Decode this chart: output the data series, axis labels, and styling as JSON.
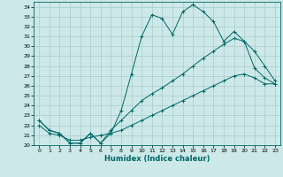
{
  "title": "",
  "xlabel": "Humidex (Indice chaleur)",
  "bg_color": "#cce8e8",
  "grid_color": "#aacccc",
  "line_color": "#006666",
  "xlim": [
    -0.5,
    23.5
  ],
  "ylim": [
    20,
    34.5
  ],
  "xticks": [
    0,
    1,
    2,
    3,
    4,
    5,
    6,
    7,
    8,
    9,
    10,
    11,
    12,
    13,
    14,
    15,
    16,
    17,
    18,
    19,
    20,
    21,
    22,
    23
  ],
  "yticks": [
    20,
    21,
    22,
    23,
    24,
    25,
    26,
    27,
    28,
    29,
    30,
    31,
    32,
    33,
    34
  ],
  "line1_x": [
    0,
    1,
    2,
    3,
    4,
    5,
    6,
    7,
    8,
    9,
    10,
    11,
    12,
    13,
    14,
    15,
    16,
    17,
    18,
    19,
    20,
    21,
    22,
    23
  ],
  "line1_y": [
    22.5,
    21.5,
    21.2,
    20.2,
    20.2,
    21.2,
    20.2,
    21.2,
    23.5,
    27.2,
    31.0,
    33.2,
    32.8,
    31.2,
    33.5,
    34.2,
    33.5,
    32.5,
    30.5,
    31.5,
    30.5,
    27.8,
    26.8,
    26.2
  ],
  "line2_x": [
    0,
    1,
    2,
    3,
    4,
    5,
    6,
    7,
    8,
    9,
    10,
    11,
    12,
    13,
    14,
    15,
    16,
    17,
    18,
    19,
    20,
    21,
    22,
    23
  ],
  "line2_y": [
    22.5,
    21.5,
    21.2,
    20.2,
    20.2,
    21.2,
    20.2,
    21.5,
    22.5,
    23.5,
    24.5,
    25.2,
    25.8,
    26.5,
    27.2,
    28.0,
    28.8,
    29.5,
    30.2,
    30.8,
    30.5,
    29.5,
    28.0,
    26.5
  ],
  "line3_x": [
    0,
    1,
    2,
    3,
    4,
    5,
    6,
    7,
    8,
    9,
    10,
    11,
    12,
    13,
    14,
    15,
    16,
    17,
    18,
    19,
    20,
    21,
    22,
    23
  ],
  "line3_y": [
    22.0,
    21.2,
    21.0,
    20.5,
    20.5,
    20.8,
    21.0,
    21.2,
    21.5,
    22.0,
    22.5,
    23.0,
    23.5,
    24.0,
    24.5,
    25.0,
    25.5,
    26.0,
    26.5,
    27.0,
    27.2,
    26.8,
    26.2,
    26.2
  ]
}
